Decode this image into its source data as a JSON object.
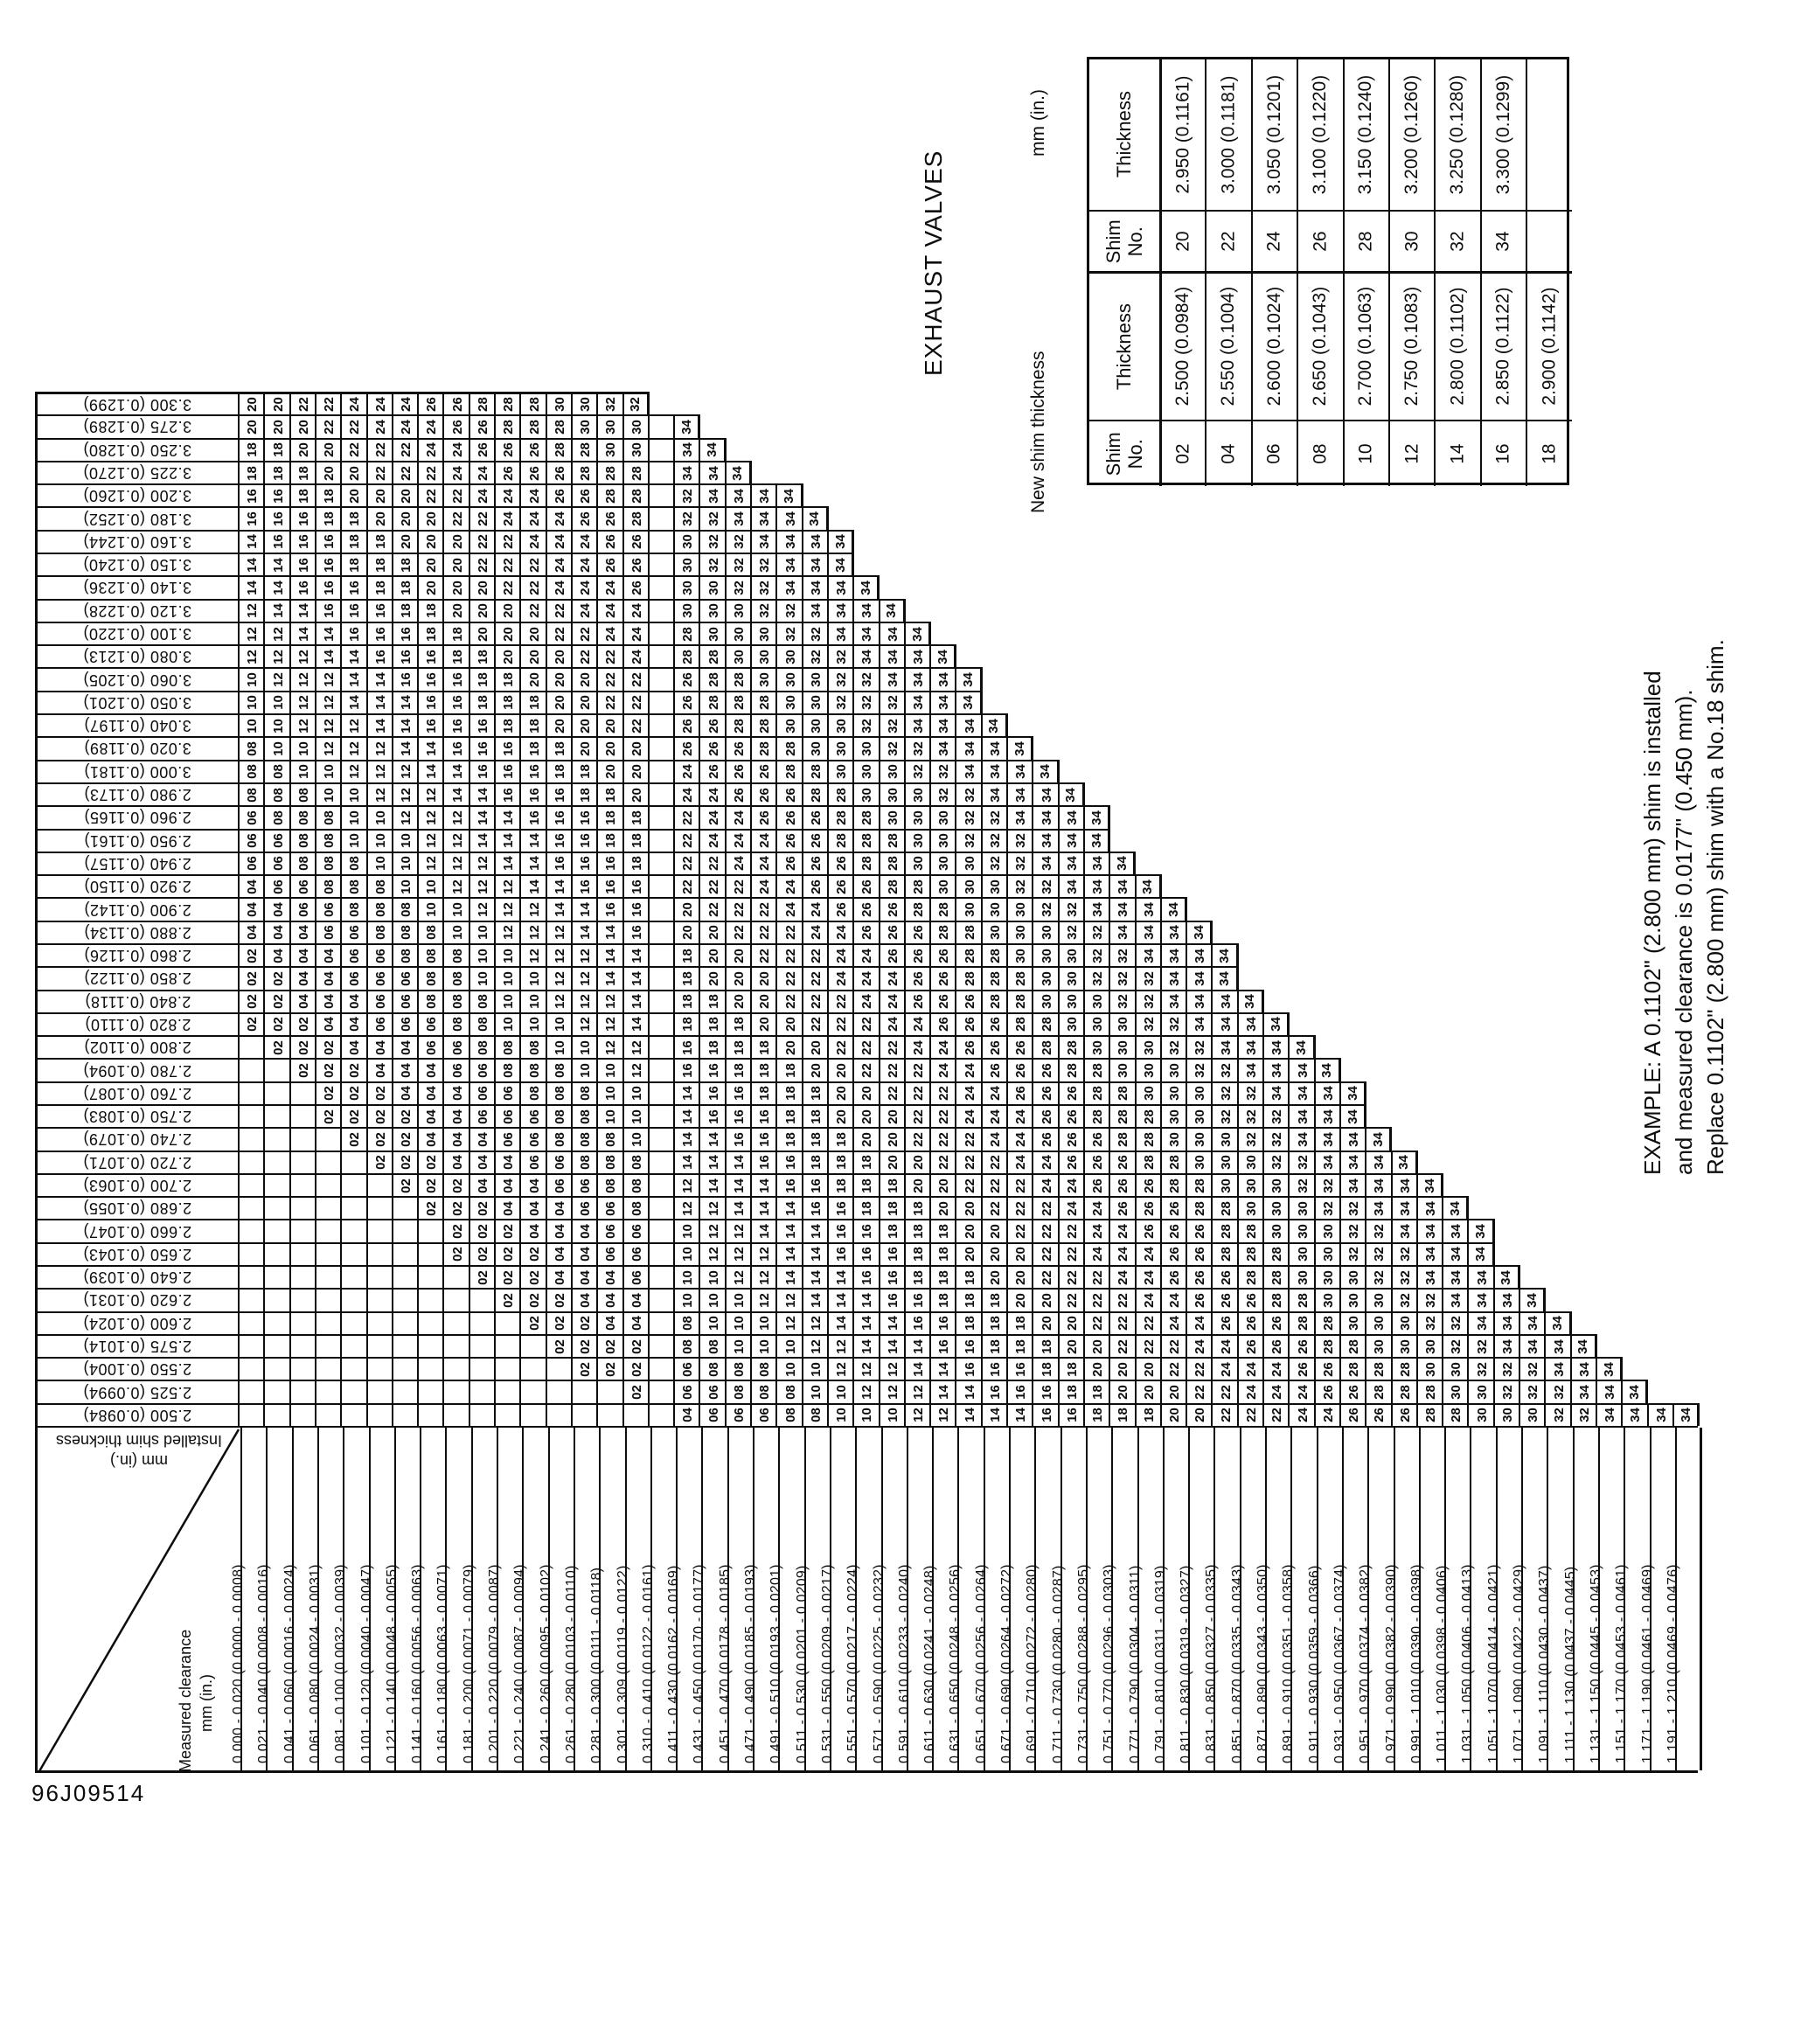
{
  "page_title": "EXHAUST VALVES",
  "doc_code": "96J09514",
  "corner": {
    "installed_line1": "Installed shim thickness",
    "installed_line2": "mm (in.)",
    "measured_line1": "Measured clearance",
    "measured_line2": "mm (in.)"
  },
  "example": {
    "line1": "EXAMPLE: A 0.1102\" (2.800 mm) shim is installed",
    "line2": "and measured clearance is 0.0177\" (0.450 mm).",
    "line3": "Replace 0.1102\" (2.800 mm) shim with a No.18 shim."
  },
  "shim_table": {
    "title": "New shim thickness",
    "units": "mm (in.)",
    "shim_no_header": [
      "Shim",
      "No."
    ],
    "thickness_header": "Thickness",
    "columns": [
      {
        "no1": "02",
        "t1": "2.500 (0.0984)",
        "no2": "20",
        "t2": "2.950 (0.1161)"
      },
      {
        "no1": "04",
        "t1": "2.550 (0.1004)",
        "no2": "22",
        "t2": "3.000 (0.1181)"
      },
      {
        "no1": "06",
        "t1": "2.600 (0.1024)",
        "no2": "24",
        "t2": "3.050 (0.1201)"
      },
      {
        "no1": "08",
        "t1": "2.650 (0.1043)",
        "no2": "26",
        "t2": "3.100 (0.1220)"
      },
      {
        "no1": "10",
        "t1": "2.700 (0.1063)",
        "no2": "28",
        "t2": "3.150 (0.1240)"
      },
      {
        "no1": "12",
        "t1": "2.750 (0.1083)",
        "no2": "30",
        "t2": "3.200 (0.1260)"
      },
      {
        "no1": "14",
        "t1": "2.800 (0.1102)",
        "no2": "32",
        "t2": "3.250 (0.1280)"
      },
      {
        "no1": "16",
        "t1": "2.850 (0.1122)",
        "no2": "34",
        "t2": "3.300 (0.1299)"
      },
      {
        "no1": "18",
        "t1": "2.900 (0.1142)",
        "no2": "",
        "t2": ""
      }
    ]
  },
  "matrix": {
    "row_labels": [
      "3.300 (0.1299)",
      "3.275 (0.1289)",
      "3.250 (0.1280)",
      "3.225 (0.1270)",
      "3.200 (0.1260)",
      "3.180 (0.1252)",
      "3.160 (0.1244)",
      "3.150 (0.1240)",
      "3.140 (0.1236)",
      "3.120 (0.1228)",
      "3.100 (0.1220)",
      "3.080 (0.1213)",
      "3.060 (0.1205)",
      "3.050 (0.1201)",
      "3.040 (0.1197)",
      "3.020 (0.1189)",
      "3.000 (0.1181)",
      "2.980 (0.1173)",
      "2.960 (0.1165)",
      "2.950 (0.1161)",
      "2.940 (0.1157)",
      "2.920 (0.1150)",
      "2.900 (0.1142)",
      "2.880 (0.1134)",
      "2.860 (0.1126)",
      "2.850 (0.1122)",
      "2.840 (0.1118)",
      "2.820 (0.1110)",
      "2.800 (0.1102)",
      "2.780 (0.1094)",
      "2.760 (0.1087)",
      "2.750 (0.1083)",
      "2.740 (0.1079)",
      "2.720 (0.1071)",
      "2.700 (0.1063)",
      "2.680 (0.1055)",
      "2.660 (0.1047)",
      "2.650 (0.1043)",
      "2.640 (0.1039)",
      "2.620 (0.1031)",
      "2.600 (0.1024)",
      "2.575 (0.1014)",
      "2.550 (0.1004)",
      "2.525 (0.0994)",
      "2.500 (0.0984)"
    ],
    "col_labels": [
      "0.000 - 0.020 (0.0000 - 0.0008)",
      "0.021 - 0.040 (0.0008 - 0.0016)",
      "0.041 - 0.060 (0.0016 - 0.0024)",
      "0.061 - 0.080 (0.0024 - 0.0031)",
      "0.081 - 0.100 (0.0032 - 0.0039)",
      "0.101 - 0.120 (0.0040 - 0.0047)",
      "0.121 - 0.140 (0.0048 - 0.0055)",
      "0.141 - 0.160 (0.0056 - 0.0063)",
      "0.161 - 0.180 (0.0063 - 0.0071)",
      "0.181 - 0.200 (0.0071 - 0.0079)",
      "0.201 - 0.220 (0.0079 - 0.0087)",
      "0.221 - 0.240 (0.0087 - 0.0094)",
      "0.241 - 0.260 (0.0095 - 0.0102)",
      "0.261 - 0.280 (0.0103 - 0.0110)",
      "0.281 - 0.300 (0.0111 - 0.0118)",
      "0.301 - 0.309 (0.0119 - 0.0122)",
      "0.310 - 0.410 (0.0122 - 0.0161)",
      "0.411 - 0.430 (0.0162 - 0.0169)",
      "0.431 - 0.450 (0.0170 - 0.0177)",
      "0.451 - 0.470 (0.0178 - 0.0185)",
      "0.471 - 0.490 (0.0185 - 0.0193)",
      "0.491 - 0.510 (0.0193 - 0.0201)",
      "0.511 - 0.530 (0.0201 - 0.0209)",
      "0.531 - 0.550 (0.0209 - 0.0217)",
      "0.551 - 0.570 (0.0217 - 0.0224)",
      "0.571 - 0.590 (0.0225 - 0.0232)",
      "0.591 - 0.610 (0.0233 - 0.0240)",
      "0.611 - 0.630 (0.0241 - 0.0248)",
      "0.631 - 0.650 (0.0248 - 0.0256)",
      "0.651 - 0.670 (0.0256 - 0.0264)",
      "0.671 - 0.690 (0.0264 - 0.0272)",
      "0.691 - 0.710 (0.0272 - 0.0280)",
      "0.711 - 0.730 (0.0280 - 0.0287)",
      "0.731 - 0.750 (0.0288 - 0.0295)",
      "0.751 - 0.770 (0.0296 - 0.0303)",
      "0.771 - 0.790 (0.0304 - 0.0311)",
      "0.791 - 0.810 (0.0311 - 0.0319)",
      "0.811 - 0.830 (0.0319 - 0.0327)",
      "0.831 - 0.850 (0.0327 - 0.0335)",
      "0.851 - 0.870 (0.0335 - 0.0343)",
      "0.871 - 0.890 (0.0343 - 0.0350)",
      "0.891 - 0.910 (0.0351 - 0.0358)",
      "0.911 - 0.930 (0.0359 - 0.0366)",
      "0.931 - 0.950 (0.0367 - 0.0374)",
      "0.951 - 0.970 (0.0374 - 0.0382)",
      "0.971 - 0.990 (0.0382 - 0.0390)",
      "0.991 - 1.010 (0.0390 - 0.0398)",
      "1.011 - 1.030 (0.0398 - 0.0406)",
      "1.031 - 1.050 (0.0406 - 0.0413)",
      "1.051 - 1.070 (0.0414 - 0.0421)",
      "1.071 - 1.090 (0.0422 - 0.0429)",
      "1.091 - 1.110 (0.0430 - 0.0437)",
      "1.111 - 1.130 (0.0437 - 0.0445)",
      "1.131 - 1.150 (0.0445 - 0.0453)",
      "1.151 - 1.170 (0.0453 - 0.0461)",
      "1.171 - 1.190 (0.0461 - 0.0469)",
      "1.191 - 1.210 (0.0469 - 0.0476)"
    ],
    "cells": [
      "20 20 22 22 24 24 24 26 26 28 28 28 30 30 32 32 -- -- -- -- -- -- -- -- -- -- -- -- -- -- -- -- -- -- -- -- -- -- -- -- -- -- -- -- -- -- -- -- -- -- -- -- -- -- -- -- --",
      "20 20 20 22 22 24 24 24 26 26 28 28 28 30 30 30 -- 34 -- -- -- -- -- -- -- -- -- -- -- -- -- -- -- -- -- -- -- -- -- -- -- -- -- -- -- -- -- -- -- -- -- -- -- -- -- -- --",
      "18 18 20 20 22 22 22 24 24 26 26 26 28 28 30 30 -- 34 34 -- -- -- -- -- -- -- -- -- -- -- -- -- -- -- -- -- -- -- -- -- -- -- -- -- -- -- -- -- -- -- -- -- -- -- -- -- --",
      "18 18 18 20 20 22 22 22 24 24 26 26 26 28 28 28 -- 34 34 34 -- -- -- -- -- -- -- -- -- -- -- -- -- -- -- -- -- -- -- -- -- -- -- -- -- -- -- -- -- -- -- -- -- -- -- -- --",
      "16 16 18 18 20 20 20 22 22 24 24 24 26 26 28 28 -- 32 34 34 34 34 -- -- -- -- -- -- -- -- -- -- -- -- -- -- -- -- -- -- -- -- -- -- -- -- -- -- -- -- -- -- -- -- -- -- --",
      "16 16 16 18 18 20 20 20 22 22 24 24 24 26 26 28 -- 32 32 34 34 34 34 -- -- -- -- -- -- -- -- -- -- -- -- -- -- -- -- -- -- -- -- -- -- -- -- -- -- -- -- -- -- -- -- -- --",
      "14 16 16 16 18 18 20 20 20 22 22 24 24 24 26 26 -- 30 32 32 34 34 34 34 -- -- -- -- -- -- -- -- -- -- -- -- -- -- -- -- -- -- -- -- -- -- -- -- -- -- -- -- -- -- -- -- --",
      "14 14 16 16 18 18 18 20 20 22 22 22 24 24 26 26 -- 30 32 32 32 34 34 34 -- -- -- -- -- -- -- -- -- -- -- -- -- -- -- -- -- -- -- -- -- -- -- -- -- -- -- -- -- -- -- -- --",
      "14 14 16 16 16 18 18 20 20 20 22 22 24 24 24 26 -- 30 30 32 32 34 34 34 34 -- -- -- -- -- -- -- -- -- -- -- -- -- -- -- -- -- -- -- -- -- -- -- -- -- -- -- -- -- -- -- --",
      "12 14 14 16 16 16 18 18 20 20 20 22 22 24 24 24 -- 30 30 30 32 32 34 34 34 34 -- -- -- -- -- -- -- -- -- -- -- -- -- -- -- -- -- -- -- -- -- -- -- -- -- -- -- -- -- -- --",
      "12 12 14 14 16 16 16 18 18 20 20 20 22 22 24 24 -- 28 30 30 30 32 32 34 34 34 34 -- -- -- -- -- -- -- -- -- -- -- -- -- -- -- -- -- -- -- -- -- -- -- -- -- -- -- -- -- --",
      "12 12 12 14 14 16 16 16 18 18 20 20 20 22 22 24 -- 28 28 30 30 30 32 32 34 34 34 34 -- -- -- -- -- -- -- -- -- -- -- -- -- -- -- -- -- -- -- -- -- -- -- -- -- -- -- -- --",
      "10 12 12 12 14 14 16 16 16 18 18 20 20 20 22 22 -- 26 28 28 30 30 30 32 32 34 34 34 34 -- -- -- -- -- -- -- -- -- -- -- -- -- -- -- -- -- -- -- -- -- -- -- -- -- -- -- --",
      "10 10 12 12 14 14 14 16 16 18 18 18 20 20 22 22 -- 26 28 28 28 30 30 32 32 32 34 34 34 -- -- -- -- -- -- -- -- -- -- -- -- -- -- -- -- -- -- -- -- -- -- -- -- -- -- -- --",
      "10 10 12 12 12 14 14 16 16 16 18 18 20 20 20 22 -- 26 26 28 28 30 30 30 32 32 34 34 34 34 -- -- -- -- -- -- -- -- -- -- -- -- -- -- -- -- -- -- -- -- -- -- -- -- -- -- --",
      "08 10 10 12 12 12 14 14 16 16 16 18 18 20 20 20 -- 26 26 26 28 28 30 30 30 32 32 34 34 34 34 -- -- -- -- -- -- -- -- -- -- -- -- -- -- -- -- -- -- -- -- -- -- -- -- -- --",
      "08 08 10 10 12 12 12 14 14 16 16 16 18 18 20 20 -- 24 26 26 26 28 28 30 30 30 32 32 34 34 34 34 -- -- -- -- -- -- -- -- -- -- -- -- -- -- -- -- -- -- -- -- -- -- -- -- --",
      "08 08 08 10 10 12 12 12 14 14 16 16 16 18 18 20 -- 24 24 26 26 26 28 28 30 30 30 32 32 34 34 34 34 -- -- -- -- -- -- -- -- -- -- -- -- -- -- -- -- -- -- -- -- -- -- -- --",
      "06 08 08 08 10 10 12 12 12 14 14 16 16 16 18 18 -- 22 24 24 26 26 26 28 28 30 30 30 32 32 34 34 34 34 -- -- -- -- -- -- -- -- -- -- -- -- -- -- -- -- -- -- -- -- -- -- --",
      "06 06 08 08 10 10 10 12 12 14 14 14 16 16 18 18 -- 22 24 24 24 26 26 28 28 28 30 30 32 32 32 34 34 34 -- -- -- -- -- -- -- -- -- -- -- -- -- -- -- -- -- -- -- -- -- -- --",
      "06 06 08 08 08 10 10 12 12 12 14 14 16 16 16 18 -- 22 22 24 24 26 26 26 28 28 30 30 30 32 32 34 34 34 34 -- -- -- -- -- -- -- -- -- -- -- -- -- -- -- -- -- -- -- -- -- --",
      "04 06 06 08 08 08 10 10 12 12 12 14 14 16 16 16 -- 22 22 22 24 24 26 26 26 28 28 30 30 30 32 32 34 34 34 34 -- -- -- -- -- -- -- -- -- -- -- -- -- -- -- -- -- -- -- -- --",
      "04 04 06 06 08 08 08 10 10 12 12 12 14 14 16 16 -- 20 22 22 22 24 24 26 26 26 28 28 30 30 30 32 32 34 34 34 34 -- -- -- -- -- -- -- -- -- -- -- -- -- -- -- -- -- -- -- --",
      "04 04 04 06 06 08 08 08 10 10 12 12 12 14 14 16 -- 20 20 22 22 22 24 24 26 26 26 28 28 30 30 30 32 32 34 34 34 34 -- -- -- -- -- -- -- -- -- -- -- -- -- -- -- -- -- -- --",
      "02 04 04 04 06 06 08 08 08 10 10 12 12 12 14 14 -- 18 20 20 22 22 22 24 24 26 26 26 28 28 30 30 30 32 32 34 34 34 34 -- -- -- -- -- -- -- -- -- -- -- -- -- -- -- -- -- --",
      "02 02 04 04 06 06 06 08 08 10 10 10 12 12 14 14 -- 18 20 20 20 22 22 24 24 24 26 26 28 28 28 30 30 32 32 32 34 34 34 -- -- -- -- -- -- -- -- -- -- -- -- -- -- -- -- -- --",
      "02 02 04 04 04 06 06 08 08 08 10 10 12 12 12 14 -- 18 18 20 20 22 22 22 24 24 26 26 26 28 28 30 30 30 32 32 34 34 34 34 -- -- -- -- -- -- -- -- -- -- -- -- -- -- -- -- --",
      "02 02 02 04 04 06 06 06 08 08 10 10 10 12 12 14 -- 18 18 18 20 20 22 22 22 24 24 26 26 26 28 28 30 30 30 32 32 34 34 34 34 -- -- -- -- -- -- -- -- -- -- -- -- -- -- -- --",
      "-- 02 02 02 04 04 04 06 06 08 08 08 10 10 12 12 -- 16 18 18 18 20 20 22 22 22 24 24 26 26 26 28 28 30 30 30 32 32 34 34 34 34 -- -- -- -- -- -- -- -- -- -- -- -- -- -- --",
      "-- -- 02 02 02 04 04 04 06 06 08 08 08 10 10 12 -- 16 16 18 18 18 20 20 22 22 22 24 24 26 26 26 28 28 30 30 30 32 32 34 34 34 34 -- -- -- -- -- -- -- -- -- -- -- -- -- --",
      "-- -- -- 02 02 02 04 04 04 06 06 08 08 08 10 10 -- 14 16 16 18 18 18 20 20 22 22 22 24 24 26 26 26 28 28 30 30 30 32 32 34 34 34 34 -- -- -- -- -- -- -- -- -- -- -- -- --",
      "-- -- -- 02 02 02 02 04 04 06 06 06 08 08 10 10 -- 14 16 16 16 18 18 20 20 20 22 22 24 24 24 26 26 28 28 28 30 30 32 32 32 34 34 34 -- -- -- -- -- -- -- -- -- -- -- -- --",
      "-- -- -- -- 02 02 02 04 04 04 06 06 08 08 08 10 -- 14 14 16 16 18 18 18 20 20 22 22 22 24 24 26 26 26 28 28 30 30 30 32 32 34 34 34 34 -- -- -- -- -- -- -- -- -- -- -- --",
      "-- -- -- -- -- 02 02 02 04 04 04 06 06 08 08 08 -- 14 14 14 16 16 18 18 18 20 20 22 22 22 24 24 26 26 26 28 28 30 30 30 32 32 34 34 34 34 -- -- -- -- -- -- -- -- -- -- --",
      "-- -- -- -- -- -- 02 02 02 04 04 04 06 06 08 08 -- 12 14 14 14 16 16 18 18 18 20 20 22 22 22 24 24 26 26 26 28 28 30 30 30 32 32 34 34 34 34 -- -- -- -- -- -- -- -- -- --",
      "-- -- -- -- -- -- -- 02 02 02 04 04 04 06 06 08 -- 12 12 14 14 14 16 16 18 18 18 20 20 22 22 22 24 24 26 26 26 28 28 30 30 30 32 32 34 34 34 34 -- -- -- -- -- -- -- -- --",
      "-- -- -- -- -- -- -- -- 02 02 02 04 04 04 06 06 -- 10 12 12 14 14 14 16 16 18 18 18 20 20 22 22 22 24 24 26 26 26 28 28 30 30 30 32 32 34 34 34 34 -- -- -- -- -- -- -- --",
      "-- -- -- -- -- -- -- -- 02 02 02 02 04 04 06 06 -- 10 12 12 12 14 14 16 16 16 18 18 20 20 20 22 22 24 24 24 26 26 28 28 28 30 30 32 32 32 34 34 34 -- -- -- -- -- -- -- --",
      "-- -- -- -- -- -- -- -- -- 02 02 02 04 04 04 06 -- 10 10 12 12 14 14 14 16 16 18 18 18 20 20 22 22 22 24 24 26 26 26 28 28 30 30 30 32 32 34 34 34 34 -- -- -- -- -- -- --",
      "-- -- -- -- -- -- -- -- -- -- 02 02 02 04 04 04 -- 10 10 10 12 12 14 14 14 16 16 18 18 18 20 20 22 22 22 24 24 26 26 26 28 28 30 30 30 32 32 34 34 34 34 -- -- -- -- -- --",
      "-- -- -- -- -- -- -- -- -- -- -- 02 02 02 04 04 -- 08 10 10 10 12 12 14 14 14 16 16 18 18 18 20 20 22 22 22 24 24 26 26 26 28 28 30 30 30 32 32 34 34 34 34 -- -- -- -- --",
      "-- -- -- -- -- -- -- -- -- -- -- -- 02 02 02 02 -- 08 08 10 10 10 12 12 14 14 14 16 16 18 18 18 20 20 22 22 22 24 24 26 26 26 28 28 30 30 30 32 32 34 34 34 34 -- -- -- --",
      "-- -- -- -- -- -- -- -- -- -- -- -- -- 02 02 02 -- 06 08 08 08 10 10 12 12 12 14 14 16 16 16 18 18 20 20 20 22 22 24 24 24 26 26 28 28 28 30 30 32 32 32 34 34 34 -- -- --",
      "-- -- -- -- -- -- -- -- -- -- -- -- -- -- -- 02 -- 06 06 08 08 08 10 10 12 12 12 14 14 16 16 16 18 18 20 20 20 22 22 24 24 24 26 26 28 28 28 30 30 32 32 32 34 34 34 -- --",
      "-- -- -- -- -- -- -- -- -- -- -- -- -- -- -- -- -- 04 06 06 06 08 08 10 10 10 12 12 14 14 14 16 16 18 18 18 20 20 22 22 22 24 24 26 26 26 28 28 30 30 30 32 32 34 34 34 34"
    ]
  }
}
